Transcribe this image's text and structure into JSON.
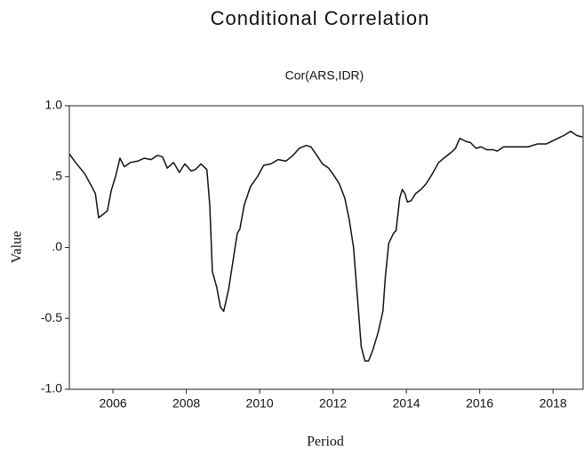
{
  "chart_data": {
    "type": "line",
    "title": "Conditional Correlation",
    "subtitle": "Cor(ARS,IDR)",
    "x_label": "Period",
    "y_label": "Value",
    "color": "#111111",
    "xlim": [
      2004.81,
      2018.82
    ],
    "xticks": [
      2006,
      2008,
      2010,
      2012,
      2014,
      2016,
      2018
    ],
    "ylim": [
      -1,
      1
    ],
    "yticks": [
      {
        "value": -1,
        "label": "-1.0"
      },
      {
        "value": -0.5,
        "label": "-0.5"
      },
      {
        "value": 0,
        "label": ".0"
      },
      {
        "value": 0.5,
        "label": ".5"
      },
      {
        "value": 1,
        "label": "1.0"
      }
    ],
    "grid": false,
    "x": [
      2004.81,
      2004.98,
      2005.23,
      2005.42,
      2005.52,
      2005.61,
      2005.76,
      2005.85,
      2005.95,
      2006.07,
      2006.19,
      2006.31,
      2006.48,
      2006.68,
      2006.85,
      2007.04,
      2007.21,
      2007.35,
      2007.48,
      2007.65,
      2007.81,
      2007.96,
      2008.13,
      2008.25,
      2008.4,
      2008.56,
      2008.64,
      2008.71,
      2008.83,
      2008.93,
      2009.02,
      2009.15,
      2009.27,
      2009.39,
      2009.46,
      2009.58,
      2009.75,
      2009.94,
      2010.11,
      2010.31,
      2010.5,
      2010.72,
      2010.91,
      2011.08,
      2011.27,
      2011.4,
      2011.56,
      2011.71,
      2011.88,
      2012.02,
      2012.17,
      2012.32,
      2012.44,
      2012.56,
      2012.65,
      2012.77,
      2012.87,
      2012.97,
      2013.09,
      2013.23,
      2013.36,
      2013.43,
      2013.52,
      2013.65,
      2013.72,
      2013.82,
      2013.89,
      2013.96,
      2014.03,
      2014.13,
      2014.25,
      2014.4,
      2014.54,
      2014.71,
      2014.88,
      2015.02,
      2015.22,
      2015.34,
      2015.46,
      2015.61,
      2015.75,
      2015.9,
      2016.04,
      2016.19,
      2016.36,
      2016.48,
      2016.65,
      2016.84,
      2017.08,
      2017.32,
      2017.57,
      2017.81,
      2018.05,
      2018.29,
      2018.48,
      2018.65,
      2018.8
    ],
    "values": [
      0.66,
      0.6,
      0.52,
      0.43,
      0.38,
      0.21,
      0.24,
      0.26,
      0.4,
      0.5,
      0.63,
      0.57,
      0.6,
      0.61,
      0.63,
      0.62,
      0.65,
      0.64,
      0.56,
      0.6,
      0.53,
      0.59,
      0.54,
      0.55,
      0.59,
      0.55,
      0.3,
      -0.17,
      -0.28,
      -0.42,
      -0.45,
      -0.3,
      -0.1,
      0.1,
      0.13,
      0.3,
      0.43,
      0.5,
      0.58,
      0.59,
      0.62,
      0.61,
      0.65,
      0.7,
      0.72,
      0.71,
      0.65,
      0.59,
      0.56,
      0.51,
      0.45,
      0.35,
      0.2,
      0.0,
      -0.3,
      -0.7,
      -0.8,
      -0.8,
      -0.72,
      -0.6,
      -0.45,
      -0.2,
      0.03,
      0.1,
      0.12,
      0.35,
      0.41,
      0.38,
      0.32,
      0.33,
      0.38,
      0.41,
      0.45,
      0.52,
      0.6,
      0.63,
      0.67,
      0.7,
      0.77,
      0.75,
      0.74,
      0.7,
      0.71,
      0.69,
      0.69,
      0.68,
      0.71,
      0.71,
      0.71,
      0.71,
      0.73,
      0.73,
      0.76,
      0.79,
      0.82,
      0.79,
      0.78
    ]
  }
}
